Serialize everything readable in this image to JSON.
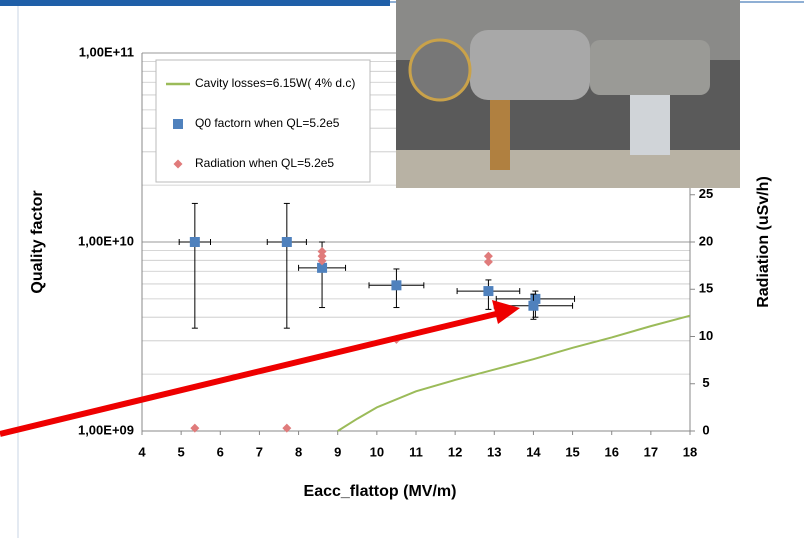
{
  "chart_data": {
    "type": "scatter",
    "x_label": "Eacc_flattop (MV/m)",
    "y_label": "Quality factor",
    "y2_label": "Radiation (uSv/h)",
    "xlim": [
      4,
      18
    ],
    "xticks": [
      4,
      5,
      6,
      7,
      8,
      9,
      10,
      11,
      12,
      13,
      14,
      15,
      16,
      17,
      18
    ],
    "ylim": [
      1000000000,
      100000000000
    ],
    "y_log": true,
    "yticks": [
      {
        "value": 1000000000,
        "label": "1,00E+09"
      },
      {
        "value": 10000000000,
        "label": "1,00E+10"
      },
      {
        "value": 100000000000,
        "label": "1,00E+11"
      }
    ],
    "y_minor_ticks": [
      2000000000,
      3000000000,
      4000000000,
      5000000000,
      6000000000,
      7000000000,
      8000000000,
      9000000000,
      20000000000,
      30000000000,
      40000000000,
      50000000000,
      60000000000,
      70000000000,
      80000000000,
      90000000000
    ],
    "y2lim": [
      0,
      40
    ],
    "y2ticks": [
      0,
      5,
      10,
      15,
      20,
      25
    ],
    "grid": true,
    "series": [
      {
        "name": "Cavity losses=6.15W( 4% d.c)",
        "color": "#9bbb59",
        "marker": "line",
        "axis": "y2",
        "x": [
          9,
          9.5,
          10,
          11,
          12,
          13,
          14,
          15,
          16,
          17,
          18
        ],
        "values": [
          0,
          1.3,
          2.5,
          4.2,
          5.4,
          6.5,
          7.6,
          8.8,
          9.9,
          11.1,
          12.2
        ]
      },
      {
        "name": "Q0 factorn when QL=5.2e5",
        "color": "#4f81bd",
        "marker": "square",
        "x": [
          5.35,
          7.7,
          8.6,
          10.5,
          12.85,
          14.05,
          14.0
        ],
        "values": [
          10000000000,
          10000000000,
          7300000000,
          5900000000,
          5500000000,
          5000000000,
          4600000000
        ],
        "y_high": [
          16000000000,
          16000000000,
          10000000000,
          7200000000,
          6300000000,
          5500000000,
          5300000000
        ],
        "y_low": [
          3500000000,
          3500000000,
          4500000000,
          4500000000,
          4400000000,
          4000000000,
          3900000000
        ],
        "x_err": [
          0.4,
          0.5,
          0.6,
          0.7,
          0.8,
          1.0,
          1.0
        ]
      },
      {
        "name": "Radiation when QL=5.2e5",
        "color": "#e07b7b",
        "marker": "diamond",
        "axis": "y2",
        "x": [
          5.35,
          7.7,
          8.6,
          8.6,
          8.6,
          10.5,
          12.85,
          12.85
        ],
        "values": [
          0.3,
          0.3,
          18,
          18.5,
          19,
          9.7,
          17.9,
          18.5
        ]
      }
    ]
  }
}
